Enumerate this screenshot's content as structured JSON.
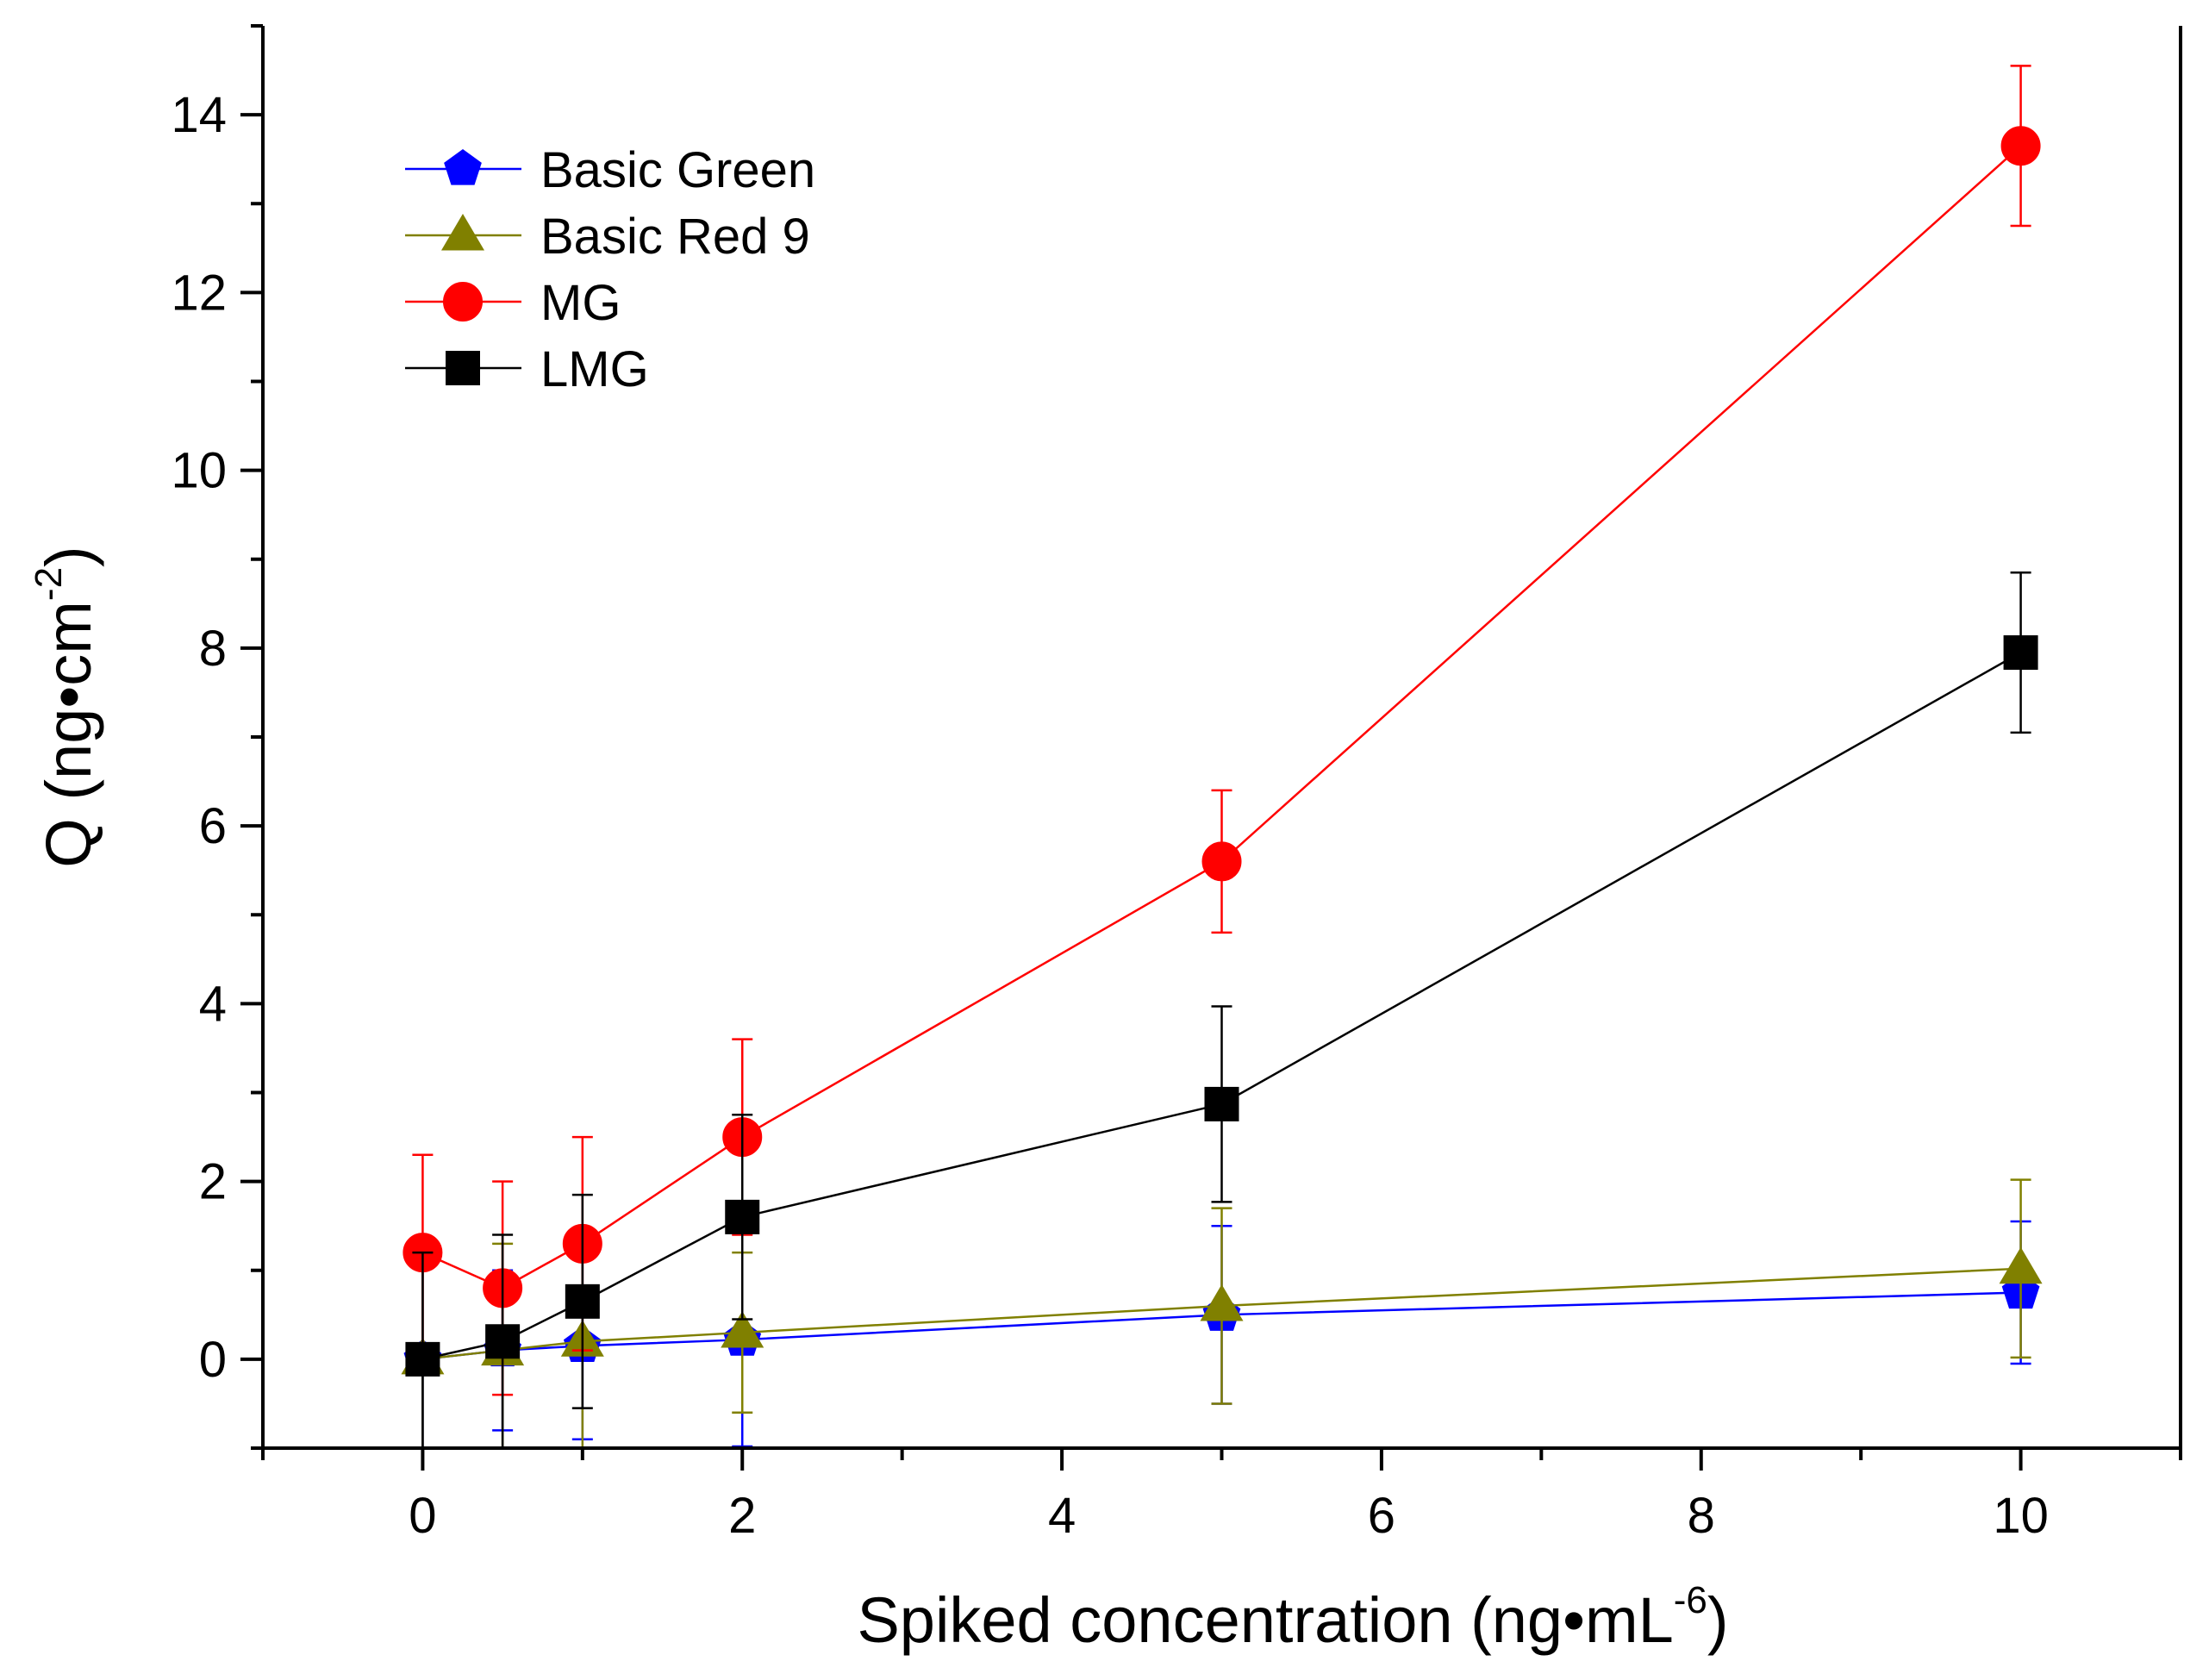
{
  "chart_data": {
    "type": "line",
    "title": "",
    "xlabel": {
      "main": "Spiked concentration (ng•mL",
      "sup": "-6",
      "close": ")"
    },
    "ylabel": {
      "main": "Q (ng•cm",
      "sup": "-2",
      "close": ")"
    },
    "xlim": [
      -1,
      11
    ],
    "ylim": [
      -1,
      15
    ],
    "x_ticks": [
      0,
      2,
      4,
      6,
      8,
      10
    ],
    "x_tick_labels": [
      "0",
      "2",
      "4",
      "6",
      "8",
      "10"
    ],
    "y_ticks": [
      0,
      2,
      4,
      6,
      8,
      10,
      12,
      14
    ],
    "y_tick_labels": [
      "0",
      "2",
      "4",
      "6",
      "8",
      "10",
      "12",
      "14"
    ],
    "legend_position": "top-left",
    "grid": false,
    "x": [
      0,
      0.5,
      1,
      2,
      5,
      10
    ],
    "series": [
      {
        "name": "Basic Green",
        "color": "#0000ff",
        "marker": "pentagon",
        "values": [
          0,
          0.1,
          0.15,
          0.22,
          0.5,
          0.75
        ],
        "errors": [
          1.2,
          0.9,
          1.05,
          1.2,
          1.0,
          0.8
        ]
      },
      {
        "name": "Basic Red 9",
        "color": "#808000",
        "marker": "triangle",
        "values": [
          0,
          0.1,
          0.2,
          0.3,
          0.6,
          1.02
        ],
        "errors": [
          1.2,
          1.2,
          1.2,
          0.9,
          1.1,
          1.0
        ]
      },
      {
        "name": "MG",
        "color": "#ff0000",
        "marker": "circle",
        "values": [
          1.2,
          0.8,
          1.3,
          2.5,
          5.6,
          13.65
        ],
        "errors": [
          1.1,
          1.2,
          1.2,
          1.1,
          0.8,
          0.9
        ]
      },
      {
        "name": "LMG",
        "color": "#000000",
        "marker": "square",
        "values": [
          0,
          0.2,
          0.65,
          1.6,
          2.87,
          7.95
        ],
        "errors": [
          1.2,
          1.2,
          1.2,
          1.15,
          1.1,
          0.9
        ]
      }
    ]
  }
}
